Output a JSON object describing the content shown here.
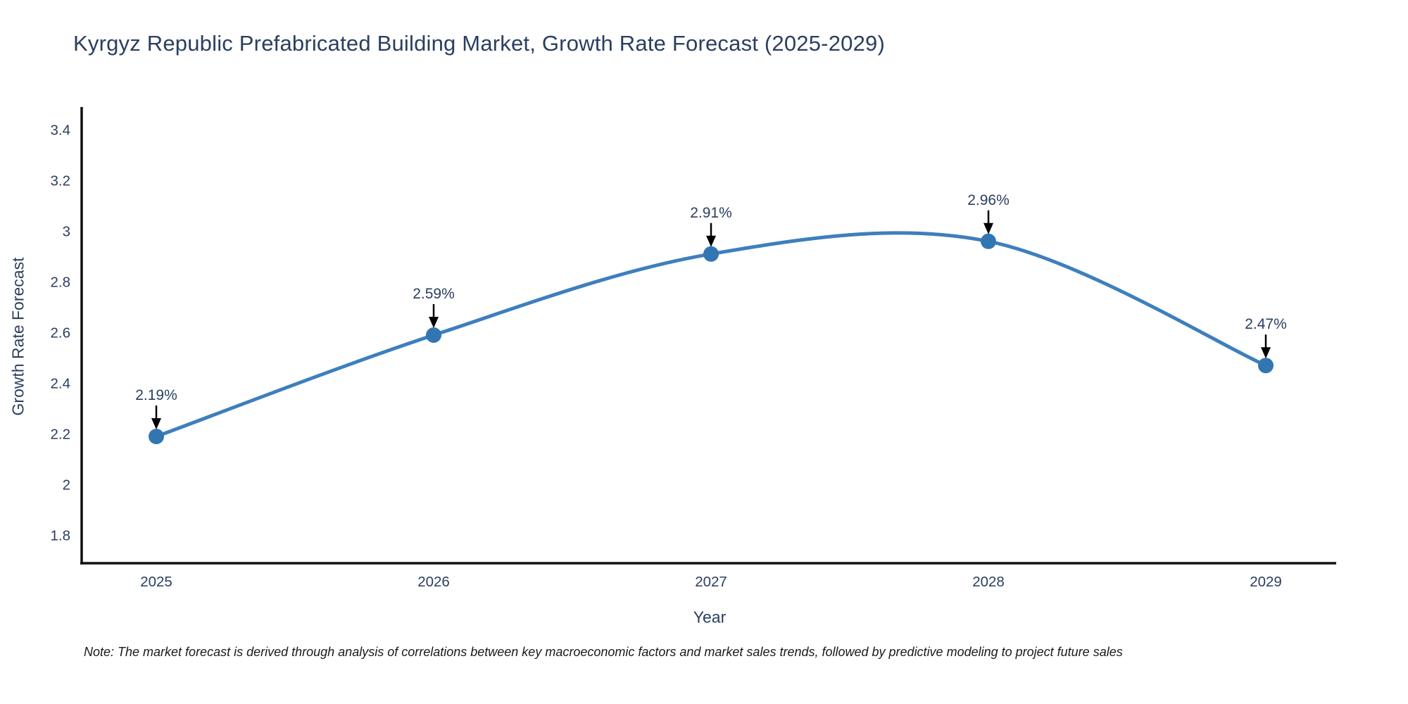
{
  "page": {
    "note": "Note: The market forecast is derived through analysis of correlations between key macroeconomic factors and market sales trends, followed by predictive modeling to project future sales"
  },
  "chart_data": {
    "type": "line",
    "title": "Kyrgyz Republic Prefabricated Building Market, Growth Rate Forecast (2025-2029)",
    "xlabel": "Year",
    "ylabel": "Growth Rate Forecast",
    "x": [
      2025,
      2026,
      2027,
      2028,
      2029
    ],
    "values": [
      2.19,
      2.59,
      2.91,
      2.96,
      2.47
    ],
    "point_labels": [
      "2.19%",
      "2.59%",
      "2.91%",
      "2.96%",
      "2.47%"
    ],
    "xtick_labels": [
      "2025",
      "2026",
      "2027",
      "2028",
      "2029"
    ],
    "ytick_values": [
      1.8,
      2.0,
      2.2,
      2.4,
      2.6,
      2.8,
      3.0,
      3.2,
      3.4
    ],
    "ytick_labels": [
      "1.8",
      "2",
      "2.2",
      "2.4",
      "2.6",
      "2.8",
      "3",
      "3.2",
      "3.4"
    ],
    "ylim": [
      1.69,
      3.49
    ],
    "grid": false,
    "legend_position": "none",
    "line_shape": "spline",
    "marker": "circle",
    "annotations": "value label with downward arrow above each data point",
    "colors": {
      "line": "#3e7fbd",
      "marker": "#3276b1",
      "text": "#2a3f5f",
      "axis": "#111111",
      "arrow": "#000000",
      "background": "#ffffff"
    }
  }
}
